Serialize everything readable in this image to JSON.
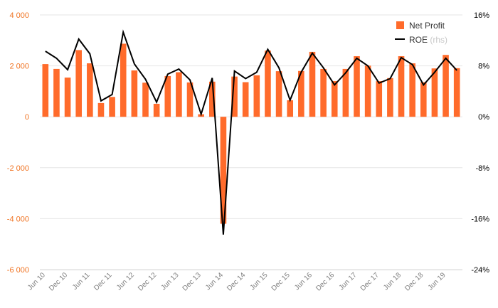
{
  "colors": {
    "bar": "#ff6b2b",
    "line": "#000000",
    "grid": "#e6e6e6",
    "left_axis_text": "#f07322",
    "right_axis_text": "#000000",
    "x_axis_text": "#7f7f7f",
    "legend_sub": "#c8c8c8"
  },
  "chart_data": {
    "type": "bar",
    "combo": "bar+line",
    "grid": true,
    "legend_position": "top-right",
    "legend": {
      "bar_label": "Net Profit",
      "line_label": "ROE",
      "line_suffix": "(rhs)"
    },
    "left_axis": {
      "ylim": [
        -6000,
        4000
      ],
      "ticks": [
        4000,
        2000,
        0,
        -2000,
        -4000,
        -6000
      ],
      "tick_labels": [
        "4 000",
        "2 000",
        "0",
        "-2 000",
        "-4 000",
        "-6 000"
      ]
    },
    "right_axis": {
      "ylim": [
        -24,
        16
      ],
      "ticks": [
        16,
        8,
        0,
        -8,
        -16,
        -24
      ],
      "tick_labels": [
        "16%",
        "8%",
        "0%",
        "-8%",
        "-16%",
        "-24%"
      ]
    },
    "categories": [
      "Jun 10",
      "Sep 10",
      "Dec 10",
      "Mar 11",
      "Jun 11",
      "Sep 11",
      "Dec 11",
      "Mar 12",
      "Jun 12",
      "Sep 12",
      "Dec 12",
      "Mar 13",
      "Jun 13",
      "Sep 13",
      "Dec 13",
      "Mar 14",
      "Jun 14",
      "Sep 14",
      "Dec 14",
      "Mar 15",
      "Jun 15",
      "Sep 15",
      "Dec 15",
      "Mar 16",
      "Jun 16",
      "Sep 16",
      "Dec 16",
      "Mar 17",
      "Jun 17",
      "Sep 17",
      "Dec 17",
      "Mar 18",
      "Jun 18",
      "Sep 18",
      "Dec 18",
      "Mar 19",
      "Jun 19",
      "Sep 19"
    ],
    "x_tick_labels": [
      "Jun 10",
      "Dec 10",
      "Jun 11",
      "Dec 11",
      "Jun 12",
      "Dec 12",
      "Jun 13",
      "Dec 13",
      "Jun 14",
      "Dec 14",
      "Jun 15",
      "Dec 15",
      "Jun 16",
      "Dec 16",
      "Jun 17",
      "Dec 17",
      "Jun 18",
      "Dec 18",
      "Jun 19"
    ],
    "series": [
      {
        "name": "Net Profit",
        "type": "bar",
        "axis": "left",
        "values": [
          2070,
          1880,
          1540,
          2620,
          2100,
          540,
          780,
          2870,
          1820,
          1340,
          510,
          1600,
          1750,
          1350,
          100,
          1380,
          -4200,
          1580,
          1360,
          1630,
          2600,
          1790,
          650,
          1800,
          2550,
          1880,
          1400,
          1880,
          2380,
          2010,
          1400,
          1520,
          2380,
          2100,
          1360,
          1900,
          2430,
          1910
        ]
      },
      {
        "name": "ROE",
        "type": "line",
        "axis": "right",
        "values": [
          10.3,
          9.2,
          7.4,
          12.2,
          9.9,
          2.5,
          3.5,
          13.3,
          8.3,
          5.9,
          2.3,
          6.7,
          7.5,
          5.8,
          0.4,
          6.1,
          -18.5,
          7.2,
          6.0,
          7.0,
          10.6,
          7.7,
          2.6,
          7.0,
          10.0,
          7.7,
          5.0,
          6.9,
          9.2,
          8.0,
          5.3,
          6.0,
          9.3,
          8.2,
          5.0,
          7.0,
          9.2,
          7.3
        ]
      }
    ]
  }
}
